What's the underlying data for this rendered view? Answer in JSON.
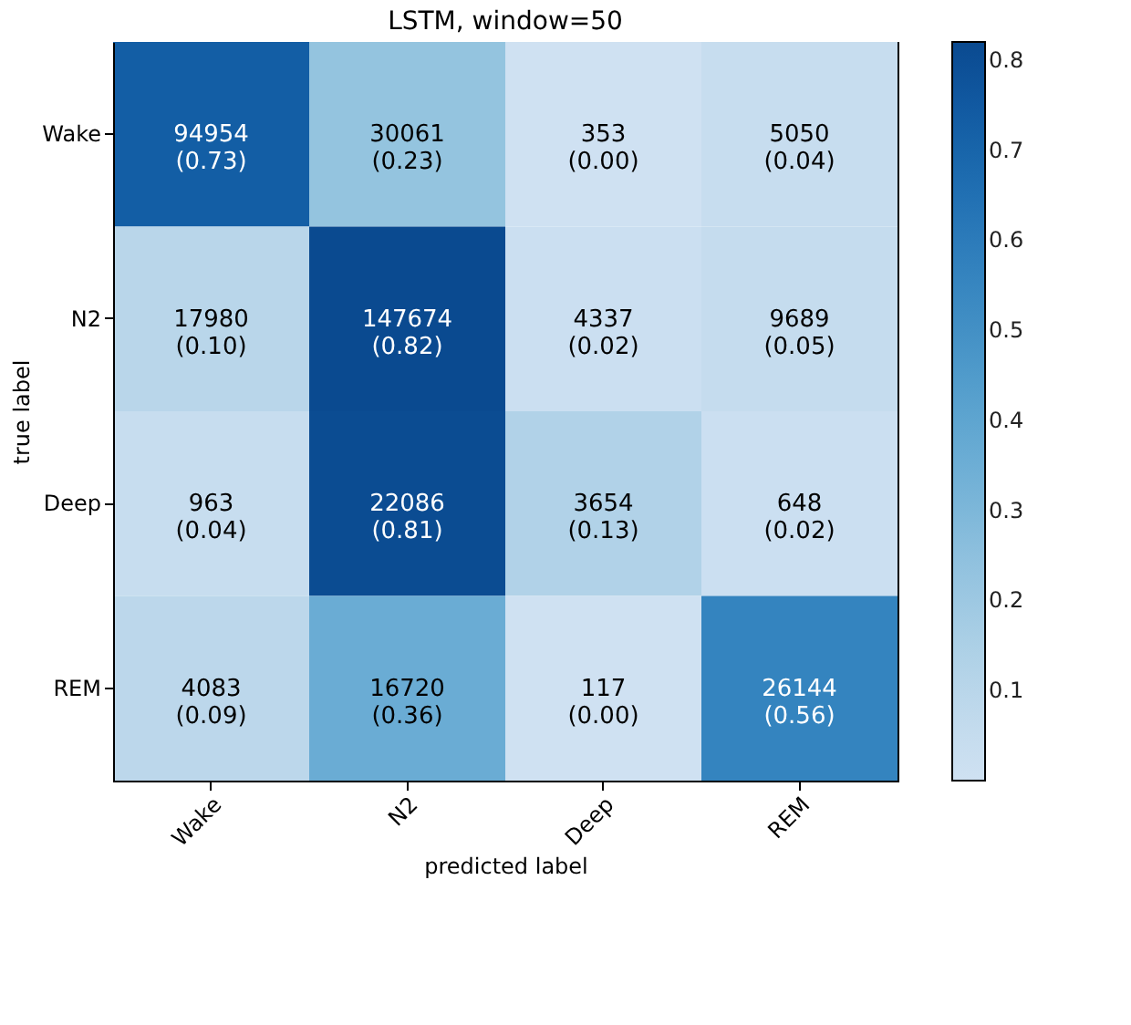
{
  "chart_data": {
    "type": "heatmap",
    "title": "LSTM, window=50",
    "xlabel": "predicted label",
    "ylabel": "true label",
    "categories": [
      "Wake",
      "N2",
      "Deep",
      "REM"
    ],
    "y_categories": [
      "Wake",
      "N2",
      "Deep",
      "REM"
    ],
    "cells": [
      [
        0.73,
        0.23,
        0.0,
        0.04
      ],
      [
        0.1,
        0.82,
        0.02,
        0.05
      ],
      [
        0.04,
        0.81,
        0.13,
        0.02
      ],
      [
        0.09,
        0.36,
        0.0,
        0.56
      ]
    ],
    "cell_labels": [
      [
        "94954\n(0.73)",
        "30061\n(0.23)",
        "353\n(0.00)",
        "5050\n(0.04)"
      ],
      [
        "17980\n(0.10)",
        "147674\n(0.82)",
        "4337\n(0.02)",
        "9689\n(0.05)"
      ],
      [
        "963\n(0.04)",
        "22086\n(0.81)",
        "3654\n(0.13)",
        "648\n(0.02)"
      ],
      [
        "4083\n(0.09)",
        "16720\n(0.36)",
        "117\n(0.00)",
        "26144\n(0.56)"
      ]
    ],
    "clim": [
      0.0,
      0.82
    ],
    "cticks": [
      0.1,
      0.2,
      0.3,
      0.4,
      0.5,
      0.6,
      0.7,
      0.8
    ]
  }
}
